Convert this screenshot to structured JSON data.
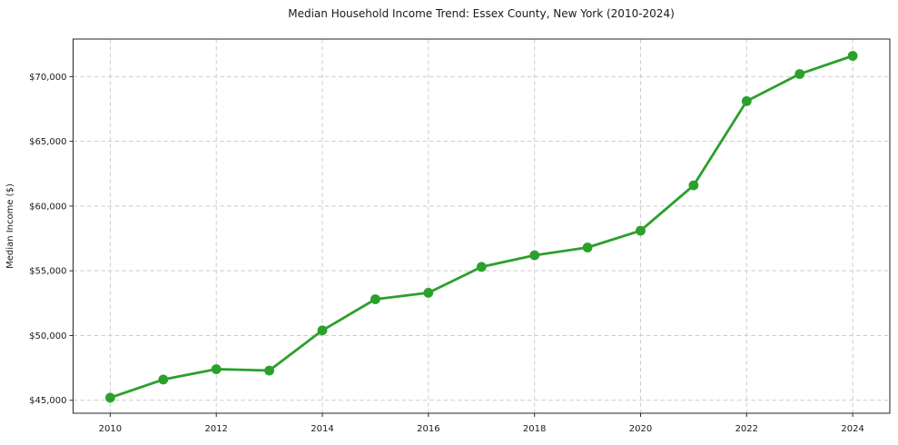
{
  "chart_data": {
    "type": "line",
    "title": "Median Household Income Trend: Essex County, New York (2010-2024)",
    "xlabel": "",
    "ylabel": "Median Income ($)",
    "x": [
      2010,
      2011,
      2012,
      2013,
      2014,
      2015,
      2016,
      2017,
      2018,
      2019,
      2020,
      2021,
      2022,
      2023,
      2024
    ],
    "y": [
      45200,
      46600,
      47400,
      47300,
      50400,
      52800,
      53300,
      55300,
      56200,
      56800,
      58100,
      61600,
      68100,
      70200,
      71600
    ],
    "xticks": [
      2010,
      2012,
      2014,
      2016,
      2018,
      2020,
      2022,
      2024
    ],
    "xtick_labels": [
      "2010",
      "2012",
      "2014",
      "2016",
      "2018",
      "2020",
      "2022",
      "2024"
    ],
    "yticks": [
      45000,
      50000,
      55000,
      60000,
      65000,
      70000
    ],
    "ytick_labels": [
      "$45,000",
      "$50,000",
      "$55,000",
      "$60,000",
      "$65,000",
      "$70,000"
    ],
    "xlim": [
      2009.3,
      2024.7
    ],
    "ylim": [
      44000,
      72900
    ],
    "grid": true,
    "grid_style": "dashed",
    "legend": "none",
    "line_color": "#2ca02c",
    "marker": "circle",
    "marker_color": "#2ca02c",
    "grid_color": "#cccccc",
    "spine_color": "#262626",
    "text_color": "#1a1a1a",
    "background_color": "#ffffff"
  }
}
